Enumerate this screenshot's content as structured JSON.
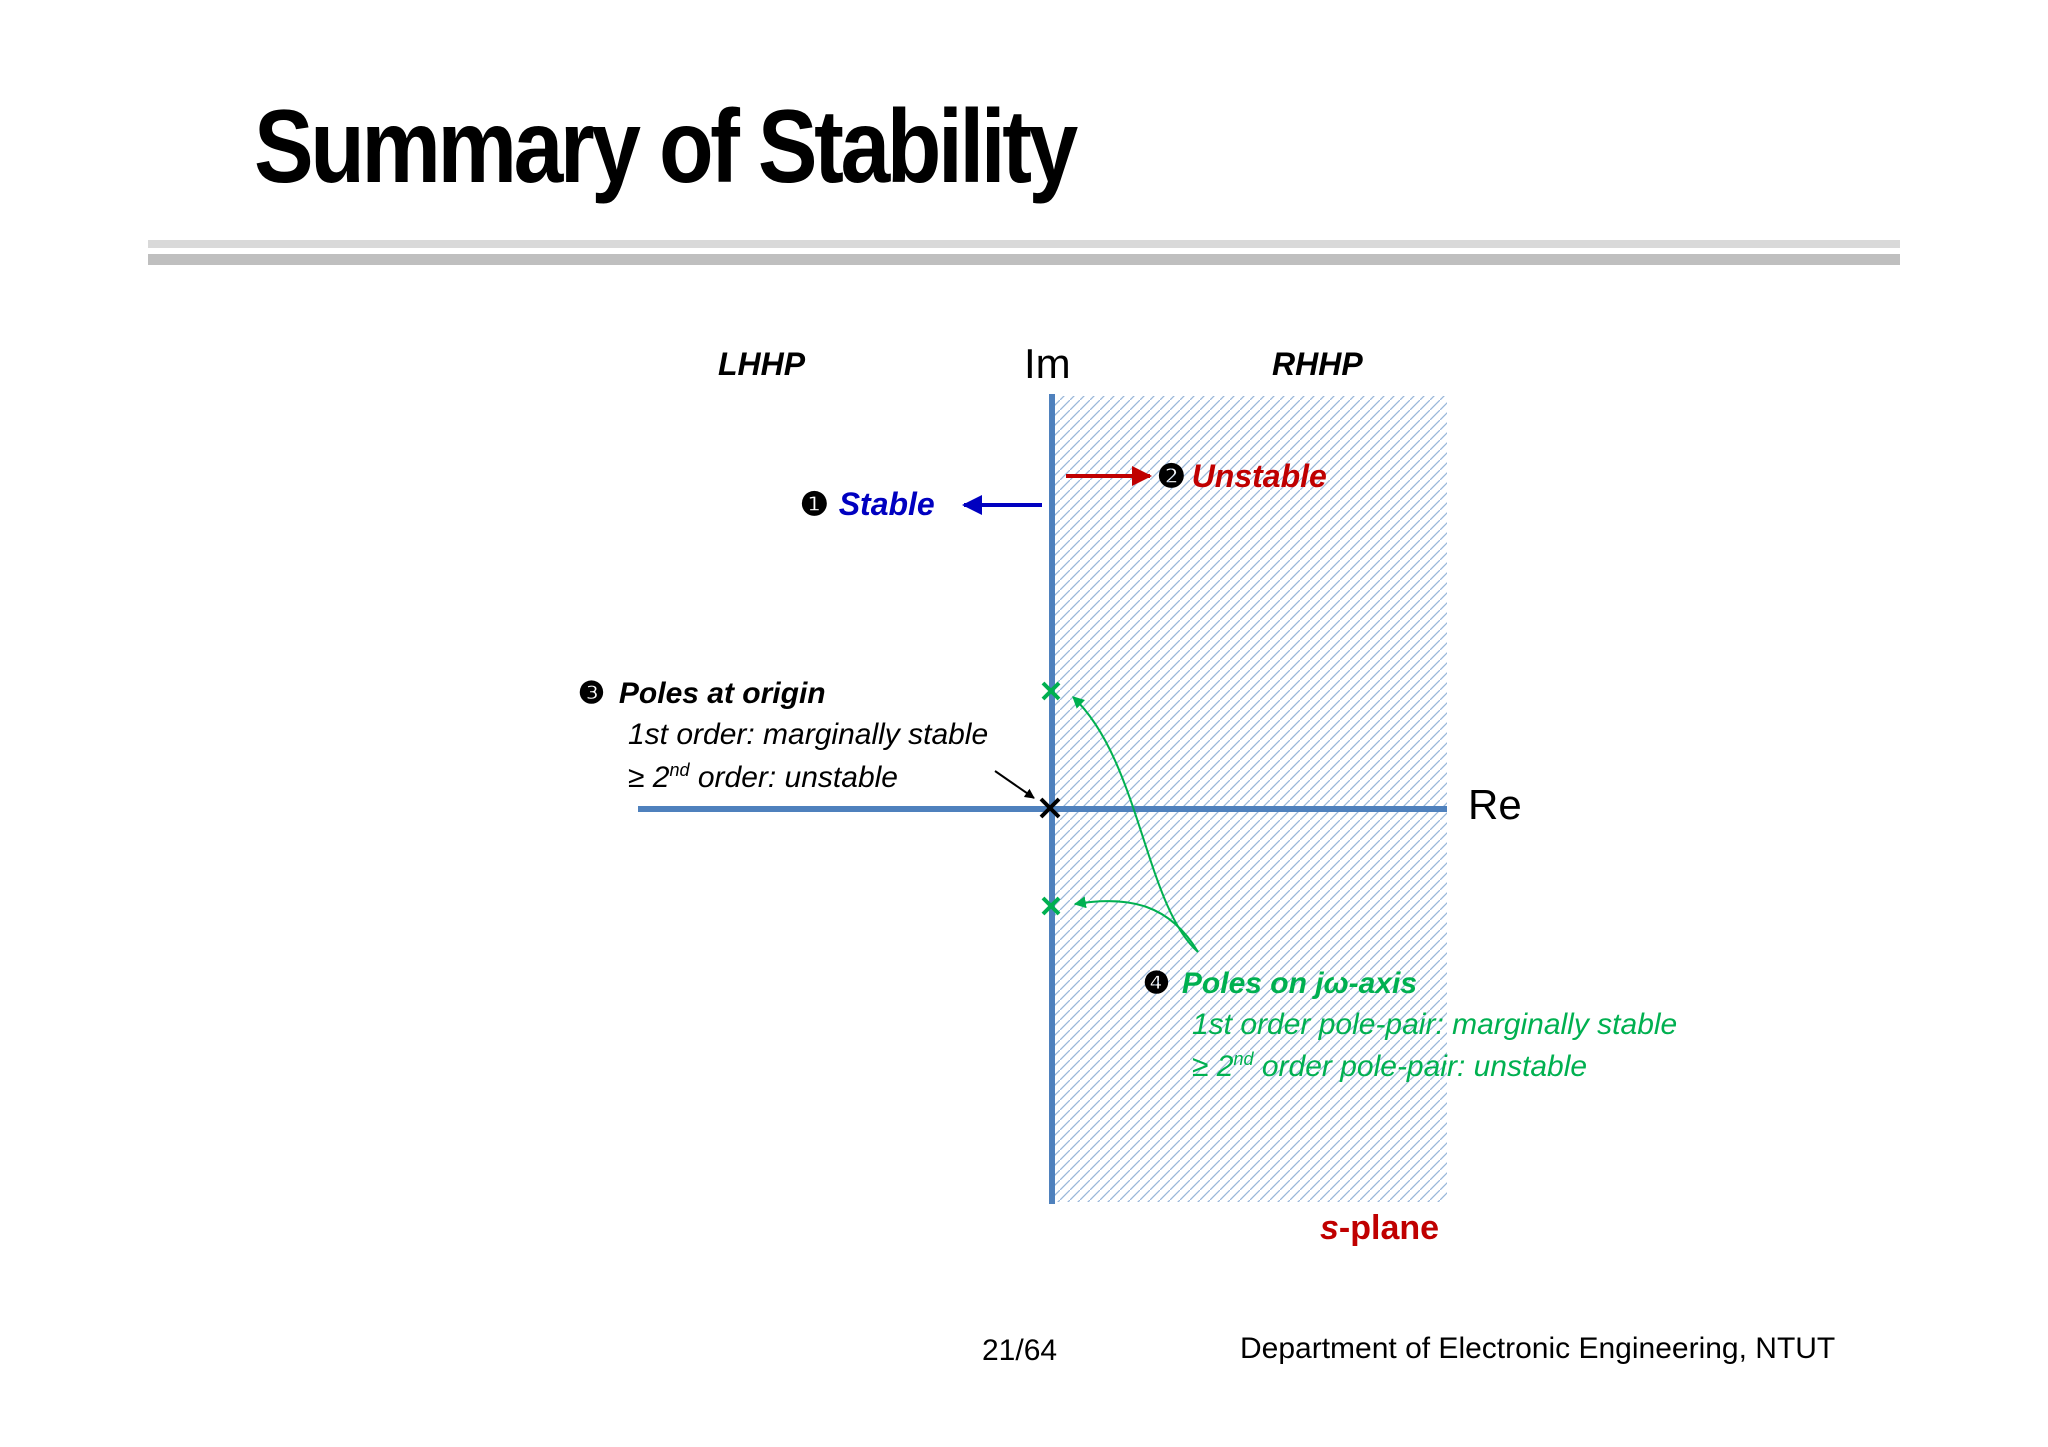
{
  "slide": {
    "title": "Summary of Stability",
    "page_number": "21/64",
    "department": "Department of Electronic Engineering, NTUT"
  },
  "diagram": {
    "lhhp_label": "LHHP",
    "rhhp_label": "RHHP",
    "im_axis_label": "Im",
    "re_axis_label": "Re",
    "plane_label_italic": "s",
    "plane_label_rest": "-plane",
    "stable": {
      "number": "❶",
      "text": "Stable"
    },
    "unstable": {
      "number": "❷",
      "text": "Unstable"
    },
    "origin_poles": {
      "number": "❸",
      "title": "Poles at origin",
      "line1": "1st order: marginally stable",
      "line2_prefix": "≥ 2",
      "line2_sup": "nd",
      "line2_suffix": " order: unstable"
    },
    "jw_poles": {
      "number": "❹",
      "title": "Poles on jω-axis",
      "line1": "1st order pole-pair: marginally stable",
      "line2_prefix": "≥ 2",
      "line2_sup": "nd",
      "line2_suffix": " order pole-pair: unstable"
    },
    "colors": {
      "axis": "#4f81bd",
      "stable": "#0000c0",
      "unstable": "#c00000",
      "jw": "#00b050",
      "hatch": "#9ab7da"
    }
  }
}
